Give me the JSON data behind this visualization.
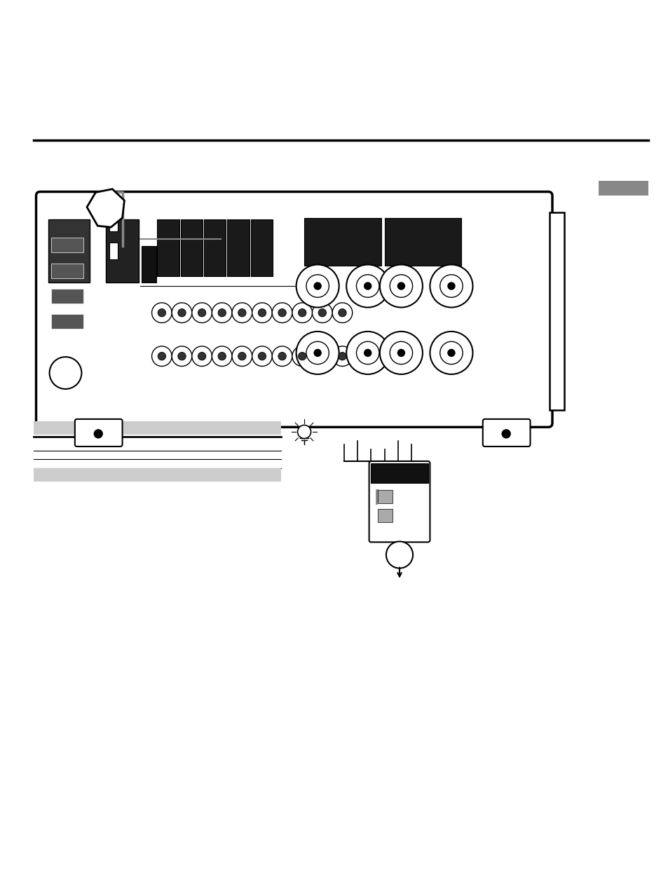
{
  "bg_color": "#ffffff",
  "right_tab_color": "#888888",
  "gray_bar_color": "#cccccc"
}
